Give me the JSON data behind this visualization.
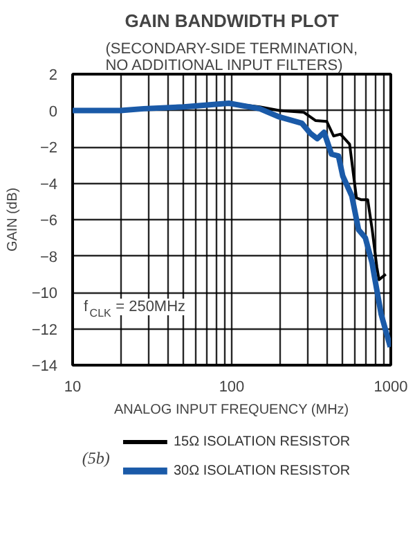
{
  "chart_data": {
    "type": "line",
    "title": "GAIN BANDWIDTH PLOT",
    "subtitle": "(SECONDARY-SIDE TERMINATION,\nNO ADDITIONAL INPUT FILTERS)",
    "xlabel": "ANALOG INPUT FREQUENCY (MHz)",
    "ylabel": "GAIN (dB)",
    "log": "x",
    "xlim": [
      10,
      1000
    ],
    "xticks": [
      10,
      100,
      1000
    ],
    "ylim": [
      -14,
      2
    ],
    "yticks": [
      2,
      0,
      -2,
      -4,
      -6,
      -8,
      -10,
      -12,
      -14
    ],
    "grid": true,
    "legend": "bottom",
    "marker": "none",
    "line_style": "solid",
    "annotations": [
      "f$_{CLK}$ = 250MHz",
      "(5b)"
    ],
    "series": [
      {
        "name": "15Ω ISOLATION RESISTOR",
        "color": "#000000",
        "x": [
          10,
          20,
          28,
          50,
          96,
          150,
          199,
          284,
          336,
          396,
          437,
          483,
          551,
          608,
          649,
          716,
          764,
          817,
          843,
          930
        ],
        "values": [
          0,
          0,
          0.1,
          0.2,
          0.4,
          0.2,
          0,
          -0.1,
          -0.55,
          -0.6,
          -1.4,
          -1.3,
          -1.85,
          -4.8,
          -4.9,
          -4.9,
          -6.55,
          -8.6,
          -9.3,
          -9.0
        ]
      },
      {
        "name": "30Ω ISOLATION RESISTOR",
        "color": "#1a5aa8",
        "x": [
          10,
          20,
          28,
          50,
          96,
          150,
          199,
          276,
          312,
          345,
          381,
          424,
          469,
          499,
          569,
          627,
          692,
          764,
          788,
          870,
          993
        ],
        "values": [
          0,
          0,
          0.1,
          0.2,
          0.4,
          0.1,
          -0.35,
          -0.7,
          -1.25,
          -1.55,
          -1.2,
          -2.4,
          -2.5,
          -3.6,
          -4.7,
          -6.55,
          -7.0,
          -8.4,
          -9.1,
          -11.2,
          -13.0
        ]
      }
    ]
  }
}
